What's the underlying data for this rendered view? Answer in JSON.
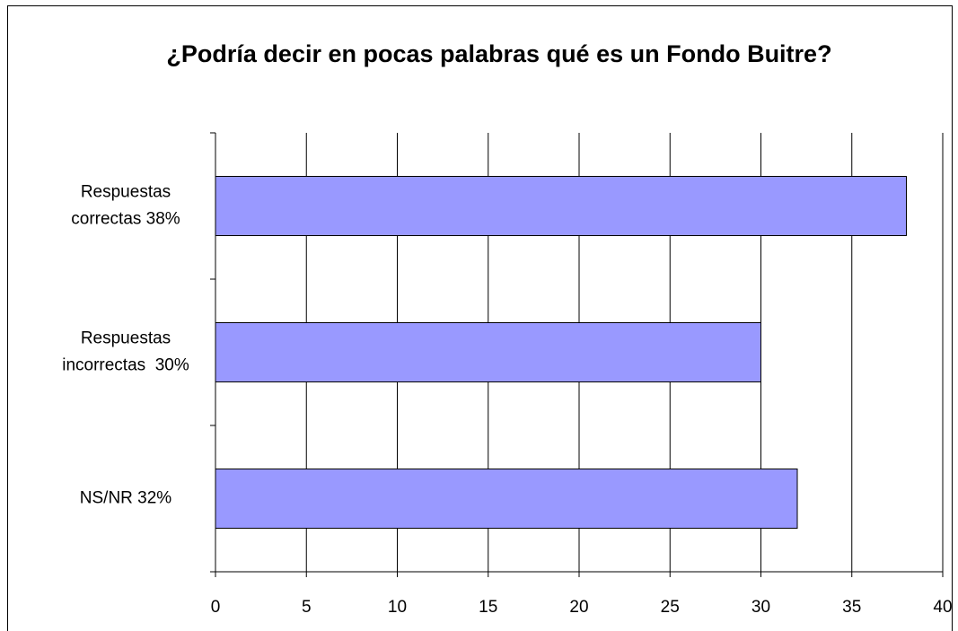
{
  "chart_data": {
    "type": "bar",
    "orientation": "horizontal",
    "title": "¿Podría decir en pocas palabras qué es un Fondo Buitre?",
    "categories": [
      [
        "Respuestas",
        "correctas 38%"
      ],
      [
        "Respuestas",
        "incorrectas  30%"
      ],
      [
        "NS/NR 32%"
      ]
    ],
    "values": [
      38,
      30,
      32
    ],
    "color": "#9999ff",
    "xlim": [
      0,
      40
    ],
    "xticks": [
      0,
      5,
      10,
      15,
      20,
      25,
      30,
      35,
      40
    ],
    "grid": true
  }
}
